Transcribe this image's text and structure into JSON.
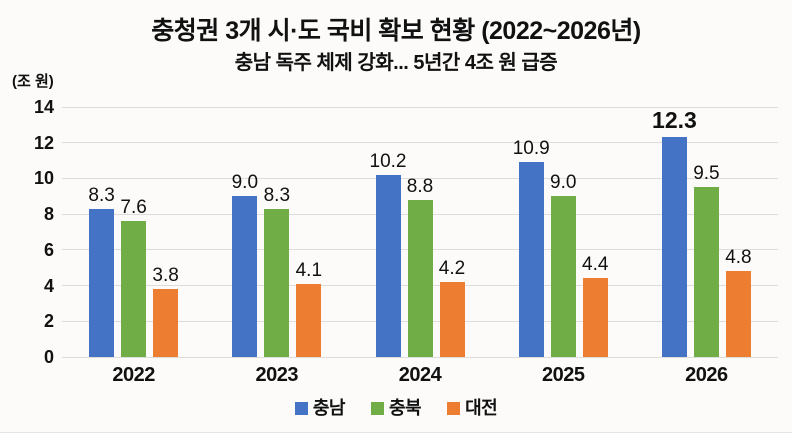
{
  "figure": {
    "title": "충청권 3개 시·도 국비 확보 현황 (2022~2026년)",
    "subtitle": "충남 독주 체제 강화... 5년간 4조 원 급증",
    "unit_label": "(조 원)"
  },
  "chart_data": {
    "type": "bar",
    "title": "충청권 3개 시·도 국비 확보 현황 (2022~2026년)",
    "subtitle": "충남 독주 체제 강화... 5년간 4조 원 급증",
    "ylabel": "(조 원)",
    "xlabel": "",
    "categories": [
      "2022",
      "2023",
      "2024",
      "2025",
      "2026"
    ],
    "series": [
      {
        "name": "충남",
        "color": "#4472C4",
        "values": [
          8.3,
          9.0,
          10.2,
          10.9,
          12.3
        ],
        "labels": [
          "8.3",
          "9.0",
          "10.2",
          "10.9",
          "12.3"
        ]
      },
      {
        "name": "충북",
        "color": "#70AD47",
        "values": [
          7.6,
          8.3,
          8.8,
          9.0,
          9.5
        ],
        "labels": [
          "7.6",
          "8.3",
          "8.8",
          "9.0",
          "9.5"
        ]
      },
      {
        "name": "대전",
        "color": "#ED7D31",
        "values": [
          3.8,
          4.1,
          4.2,
          4.4,
          4.8
        ],
        "labels": [
          "3.8",
          "4.1",
          "4.2",
          "4.4",
          "4.8"
        ]
      }
    ],
    "ylim": [
      0,
      14
    ],
    "yticks": [
      0,
      2,
      4,
      6,
      8,
      10,
      12,
      14
    ],
    "grid": true,
    "legend_position": "bottom",
    "emphasis": {
      "series": "충남",
      "category": "2026"
    }
  },
  "colors": {
    "background": "#FCFBF9",
    "gridline": "#DCDCDA",
    "text": "#111111"
  }
}
